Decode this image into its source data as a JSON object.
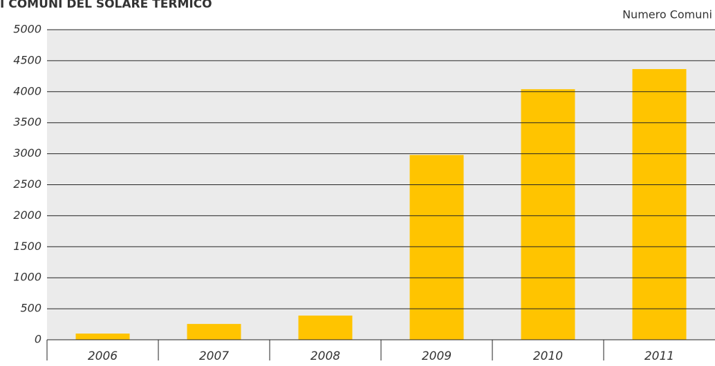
{
  "chart_data": {
    "type": "bar",
    "title": "I COMUNI DEL SOLARE TERMICO",
    "subtitle": "Numero Comuni",
    "categories": [
      "2006",
      "2007",
      "2008",
      "2009",
      "2010",
      "2011"
    ],
    "values": [
      100,
      255,
      390,
      2980,
      4040,
      4365
    ],
    "color": "#ffc400",
    "ylim": [
      0,
      5000
    ],
    "yticks": [
      0,
      500,
      1000,
      1500,
      2000,
      2500,
      3000,
      3500,
      4000,
      4500,
      5000
    ],
    "grid": true
  }
}
